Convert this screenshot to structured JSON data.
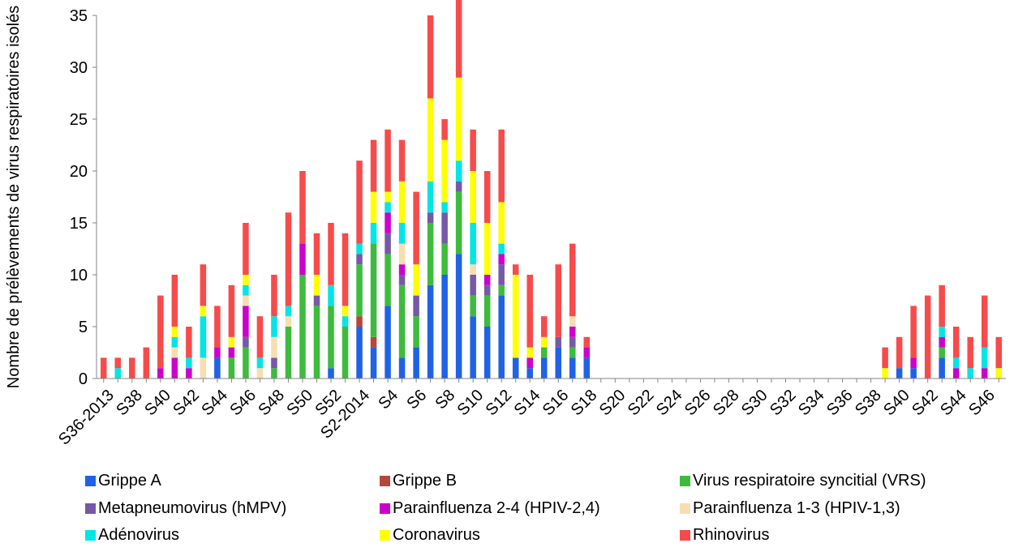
{
  "chart_data": {
    "type": "bar",
    "stacked": true,
    "title": "",
    "xlabel": "",
    "ylabel": "Nombre de prélèvements de virus respiratoires isolés",
    "ylim": [
      0,
      35
    ],
    "yticks": [
      0,
      5,
      10,
      15,
      20,
      25,
      30,
      35
    ],
    "grid": false,
    "legend_position": "bottom",
    "categories": [
      "S36-2013",
      "S37",
      "S38",
      "S39",
      "S40",
      "S41",
      "S42",
      "S43",
      "S44",
      "S45",
      "S46",
      "S47",
      "S48",
      "S49",
      "S50",
      "S51",
      "S52",
      "S53",
      "S2-2014",
      "S3",
      "S4",
      "S5",
      "S6",
      "S7",
      "S8",
      "S9",
      "S10",
      "S11",
      "S12",
      "S13",
      "S14",
      "S15",
      "S16",
      "S17",
      "S18",
      "S19",
      "S20",
      "S21",
      "S22",
      "S23",
      "S24",
      "S25",
      "S26",
      "S27",
      "S28",
      "S29",
      "S30",
      "S31",
      "S32",
      "S33",
      "S34",
      "S35",
      "S36",
      "S37",
      "S38",
      "S39",
      "S40",
      "S41",
      "S42",
      "S43",
      "S44",
      "S45",
      "S46",
      "S47"
    ],
    "shown_tick_labels": [
      "S36-2013",
      "S38",
      "S40",
      "S42",
      "S44",
      "S46",
      "S48",
      "S50",
      "S52",
      "S2-2014",
      "S4",
      "S6",
      "S8",
      "S10",
      "S12",
      "S14",
      "S16",
      "S18",
      "S20",
      "S22",
      "S24",
      "S26",
      "S28",
      "S30",
      "S32",
      "S34",
      "S36",
      "S38",
      "S40",
      "S42",
      "S44",
      "S46"
    ],
    "series": [
      {
        "name": "Grippe A",
        "color": "#1f62e6",
        "values": [
          0,
          0,
          0,
          0,
          0,
          0,
          0,
          0,
          2,
          0,
          0,
          0,
          0,
          0,
          0,
          0,
          1,
          0,
          5,
          3,
          7,
          2,
          3,
          9,
          10,
          12,
          6,
          5,
          8,
          2,
          1,
          2,
          3,
          2,
          2,
          0,
          0,
          0,
          0,
          0,
          0,
          0,
          0,
          0,
          0,
          0,
          0,
          0,
          0,
          0,
          0,
          0,
          0,
          0,
          0,
          0,
          1,
          1,
          0,
          2,
          0,
          0,
          0,
          0
        ]
      },
      {
        "name": "Grippe B",
        "color": "#b5473a",
        "values": [
          0,
          0,
          0,
          0,
          0,
          0,
          0,
          0,
          0,
          0,
          0,
          0,
          0,
          0,
          0,
          0,
          0,
          0,
          1,
          1,
          0,
          0,
          0,
          0,
          0,
          0,
          0,
          0,
          0,
          0,
          0,
          0,
          0,
          0,
          0,
          0,
          0,
          0,
          0,
          0,
          0,
          0,
          0,
          0,
          0,
          0,
          0,
          0,
          0,
          0,
          0,
          0,
          0,
          0,
          0,
          0,
          0,
          0,
          0,
          0,
          0,
          0,
          0,
          0
        ]
      },
      {
        "name": "Virus respiratoire syncitial (VRS)",
        "color": "#3dbb3d",
        "values": [
          0,
          0,
          0,
          0,
          0,
          0,
          0,
          0,
          0,
          2,
          3,
          0,
          1,
          5,
          10,
          7,
          6,
          5,
          5,
          9,
          5,
          7,
          3,
          6,
          3,
          6,
          2,
          3,
          1,
          0,
          0,
          1,
          0,
          1,
          0,
          0,
          0,
          0,
          0,
          0,
          0,
          0,
          0,
          0,
          0,
          0,
          0,
          0,
          0,
          0,
          0,
          0,
          0,
          0,
          0,
          0,
          0,
          0,
          0,
          1,
          0,
          0,
          0,
          0
        ]
      },
      {
        "name": "Metapneumovirus (hMPV)",
        "color": "#7659a6",
        "values": [
          0,
          0,
          0,
          0,
          0,
          0,
          0,
          0,
          0,
          0,
          1,
          0,
          1,
          0,
          0,
          1,
          0,
          0,
          1,
          0,
          2,
          1,
          2,
          1,
          3,
          1,
          2,
          1,
          2,
          0,
          0,
          0,
          1,
          1,
          0,
          0,
          0,
          0,
          0,
          0,
          0,
          0,
          0,
          0,
          0,
          0,
          0,
          0,
          0,
          0,
          0,
          0,
          0,
          0,
          0,
          0,
          0,
          0,
          0,
          0,
          0,
          0,
          0,
          0
        ]
      },
      {
        "name": "Parainfluenza 2-4 (HPIV-2,4)",
        "color": "#cc00cc",
        "values": [
          0,
          0,
          0,
          0,
          1,
          2,
          1,
          0,
          1,
          1,
          3,
          0,
          0,
          0,
          3,
          0,
          0,
          0,
          0,
          0,
          2,
          1,
          0,
          0,
          0,
          0,
          0,
          1,
          1,
          0,
          1,
          0,
          0,
          1,
          1,
          0,
          0,
          0,
          0,
          0,
          0,
          0,
          0,
          0,
          0,
          0,
          0,
          0,
          0,
          0,
          0,
          0,
          0,
          0,
          0,
          0,
          0,
          1,
          0,
          1,
          1,
          0,
          1,
          0
        ]
      },
      {
        "name": "Parainfluenza 1-3 (HPIV-1,3)",
        "color": "#f7deb0",
        "values": [
          0,
          0,
          0,
          0,
          0,
          1,
          0,
          2,
          0,
          0,
          1,
          1,
          2,
          1,
          0,
          0,
          0,
          0,
          0,
          0,
          0,
          2,
          0,
          0,
          0,
          0,
          1,
          0,
          0,
          0,
          0,
          0,
          0,
          1,
          0,
          0,
          0,
          0,
          0,
          0,
          0,
          0,
          0,
          0,
          0,
          0,
          0,
          0,
          0,
          0,
          0,
          0,
          0,
          0,
          0,
          0,
          0,
          0,
          0,
          0,
          0,
          0,
          0,
          0
        ]
      },
      {
        "name": "Adénovirus",
        "color": "#00e5e5",
        "values": [
          0,
          1,
          0,
          0,
          0,
          1,
          1,
          4,
          0,
          0,
          1,
          1,
          2,
          1,
          0,
          0,
          2,
          1,
          1,
          2,
          1,
          2,
          0,
          3,
          1,
          2,
          4,
          0,
          1,
          0,
          0,
          0,
          0,
          0,
          0,
          0,
          0,
          0,
          0,
          0,
          0,
          0,
          0,
          0,
          0,
          0,
          0,
          0,
          0,
          0,
          0,
          0,
          0,
          0,
          0,
          0,
          0,
          0,
          0,
          1,
          1,
          1,
          2,
          0
        ]
      },
      {
        "name": "Coronavirus",
        "color": "#ffff00",
        "values": [
          0,
          0,
          0,
          0,
          0,
          1,
          0,
          1,
          0,
          1,
          1,
          0,
          0,
          0,
          0,
          2,
          0,
          1,
          0,
          3,
          1,
          4,
          3,
          8,
          6,
          8,
          5,
          5,
          4,
          8,
          1,
          1,
          0,
          0,
          0,
          0,
          0,
          0,
          0,
          0,
          0,
          0,
          0,
          0,
          0,
          0,
          0,
          0,
          0,
          0,
          0,
          0,
          0,
          0,
          0,
          1,
          0,
          0,
          0,
          0,
          0,
          0,
          0,
          1
        ]
      },
      {
        "name": "Rhinovirus",
        "color": "#f74b4b",
        "values": [
          2,
          1,
          2,
          3,
          7,
          5,
          3,
          4,
          4,
          5,
          5,
          4,
          4,
          9,
          7,
          4,
          6,
          7,
          8,
          5,
          6,
          4,
          7,
          8,
          2,
          8,
          4,
          5,
          7,
          1,
          7,
          2,
          7,
          7,
          1,
          0,
          0,
          0,
          0,
          0,
          0,
          0,
          0,
          0,
          0,
          0,
          0,
          0,
          0,
          0,
          0,
          0,
          0,
          0,
          0,
          2,
          3,
          5,
          8,
          4,
          3,
          3,
          5,
          3
        ]
      }
    ]
  }
}
